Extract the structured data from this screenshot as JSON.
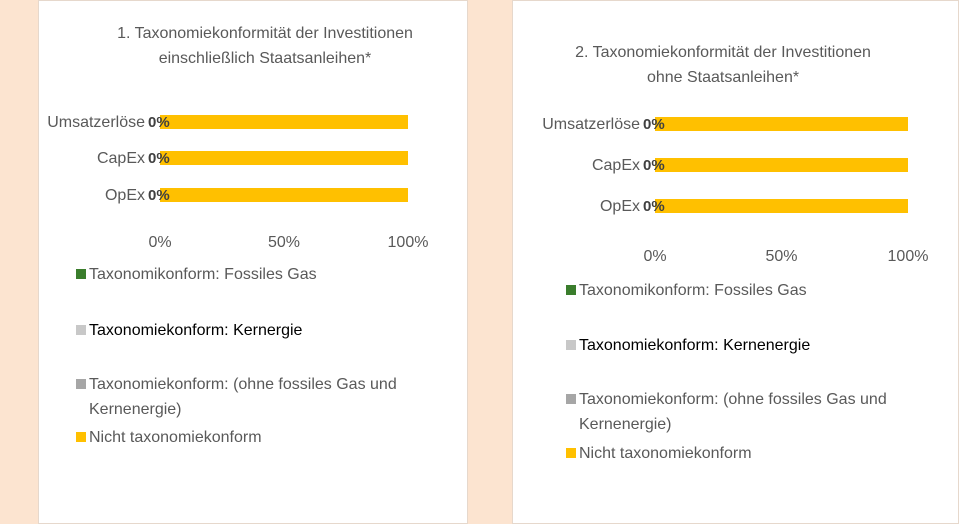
{
  "chart_data": [
    {
      "type": "bar",
      "orientation": "horizontal",
      "stacked": true,
      "title": "1. Taxonomiekonformität der Investitionen einschließlich Staatsanleihen*",
      "categories": [
        "Umsatzerlöse",
        "CapEx",
        "OpEx"
      ],
      "series": [
        {
          "name": "Taxonomikonform: Fossiles Gas",
          "color": "#3a7d2c",
          "values": [
            0,
            0,
            0
          ]
        },
        {
          "name": "Taxonomiekonform: Kernergie",
          "color": "#c8c8c8",
          "values": [
            0,
            0,
            0
          ]
        },
        {
          "name": "Taxonomiekonform: (ohne fossiles Gas und Kernenergie)",
          "color": "#a6a6a6",
          "values": [
            0,
            0,
            0
          ],
          "value_labels": [
            "0%",
            "0%",
            "0%"
          ]
        },
        {
          "name": "Nicht taxonomiekonform",
          "color": "#ffc000",
          "values": [
            100,
            100,
            100
          ]
        }
      ],
      "xlim": [
        0,
        100
      ],
      "xticks": [
        {
          "value": 0,
          "label": "0%"
        },
        {
          "value": 50,
          "label": "50%"
        },
        {
          "value": 100,
          "label": "100%"
        }
      ]
    },
    {
      "type": "bar",
      "orientation": "horizontal",
      "stacked": true,
      "title": "2. Taxonomiekonformität der Investitionen ohne Staatsanleihen*",
      "categories": [
        "Umsatzerlöse",
        "CapEx",
        "OpEx"
      ],
      "series": [
        {
          "name": "Taxonomikonform: Fossiles Gas",
          "color": "#3a7d2c",
          "values": [
            0,
            0,
            0
          ]
        },
        {
          "name": "Taxonomiekonform: Kernenergie",
          "color": "#c8c8c8",
          "values": [
            0,
            0,
            0
          ]
        },
        {
          "name": "Taxonomiekonform: (ohne fossiles Gas und Kernenergie)",
          "color": "#a6a6a6",
          "values": [
            0,
            0,
            0
          ],
          "value_labels": [
            "0%",
            "0%",
            "0%"
          ]
        },
        {
          "name": "Nicht taxonomiekonform",
          "color": "#ffc000",
          "values": [
            100,
            100,
            100
          ]
        }
      ],
      "xlim": [
        0,
        100
      ],
      "xticks": [
        {
          "value": 0,
          "label": "0%"
        },
        {
          "value": 50,
          "label": "50%"
        },
        {
          "value": 100,
          "label": "100%"
        }
      ]
    }
  ]
}
